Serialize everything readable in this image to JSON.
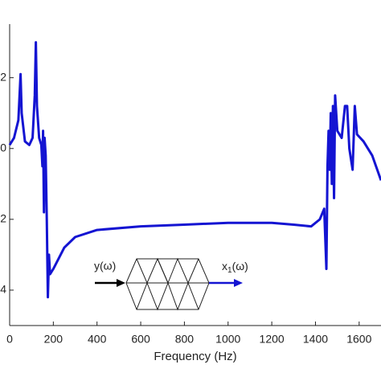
{
  "chart_data": {
    "type": "line",
    "xlabel": "Frequency (Hz)",
    "x": [
      0,
      20,
      40,
      50,
      55,
      70,
      90,
      105,
      115,
      120,
      125,
      135,
      145,
      150,
      153,
      157,
      160,
      165,
      170,
      175,
      180,
      185,
      200,
      250,
      300,
      400,
      600,
      800,
      1000,
      1200,
      1300,
      1380,
      1420,
      1440,
      1450,
      1455,
      1460,
      1465,
      1470,
      1475,
      1480,
      1485,
      1490,
      1500,
      1520,
      1535,
      1545,
      1555,
      1570,
      1580,
      1590,
      1620,
      1660,
      1700
    ],
    "values": [
      0.1,
      0.3,
      0.8,
      2.1,
      1.0,
      0.2,
      0.1,
      0.3,
      1.5,
      3.0,
      1.2,
      0.3,
      0.1,
      -0.5,
      0.5,
      -1.8,
      0.3,
      -0.2,
      -2.0,
      -4.2,
      -3.0,
      -3.55,
      -3.4,
      -2.8,
      -2.5,
      -2.3,
      -2.2,
      -2.15,
      -2.1,
      -2.1,
      -2.15,
      -2.2,
      -2.0,
      -1.7,
      -3.4,
      -0.5,
      0.5,
      -0.6,
      1.0,
      -1.0,
      1.2,
      -1.4,
      1.5,
      0.5,
      0.3,
      1.2,
      1.2,
      0.0,
      -0.6,
      1.2,
      0.4,
      0.2,
      -0.2,
      -0.9
    ],
    "color": "#1414d2",
    "xlim": [
      0,
      1700
    ],
    "ylim": [
      -5,
      3.4
    ],
    "xticks": [
      0,
      200,
      400,
      600,
      800,
      1000,
      1200,
      1400,
      1600
    ],
    "yticks": [
      2,
      0,
      {
        "value": -2,
        "label": "2"
      },
      {
        "value": -4,
        "label": "4"
      }
    ],
    "annotations": {
      "input": "y(ω)",
      "output_symbol": "x",
      "output_index": "1",
      "output_arg": "(ω)"
    }
  }
}
